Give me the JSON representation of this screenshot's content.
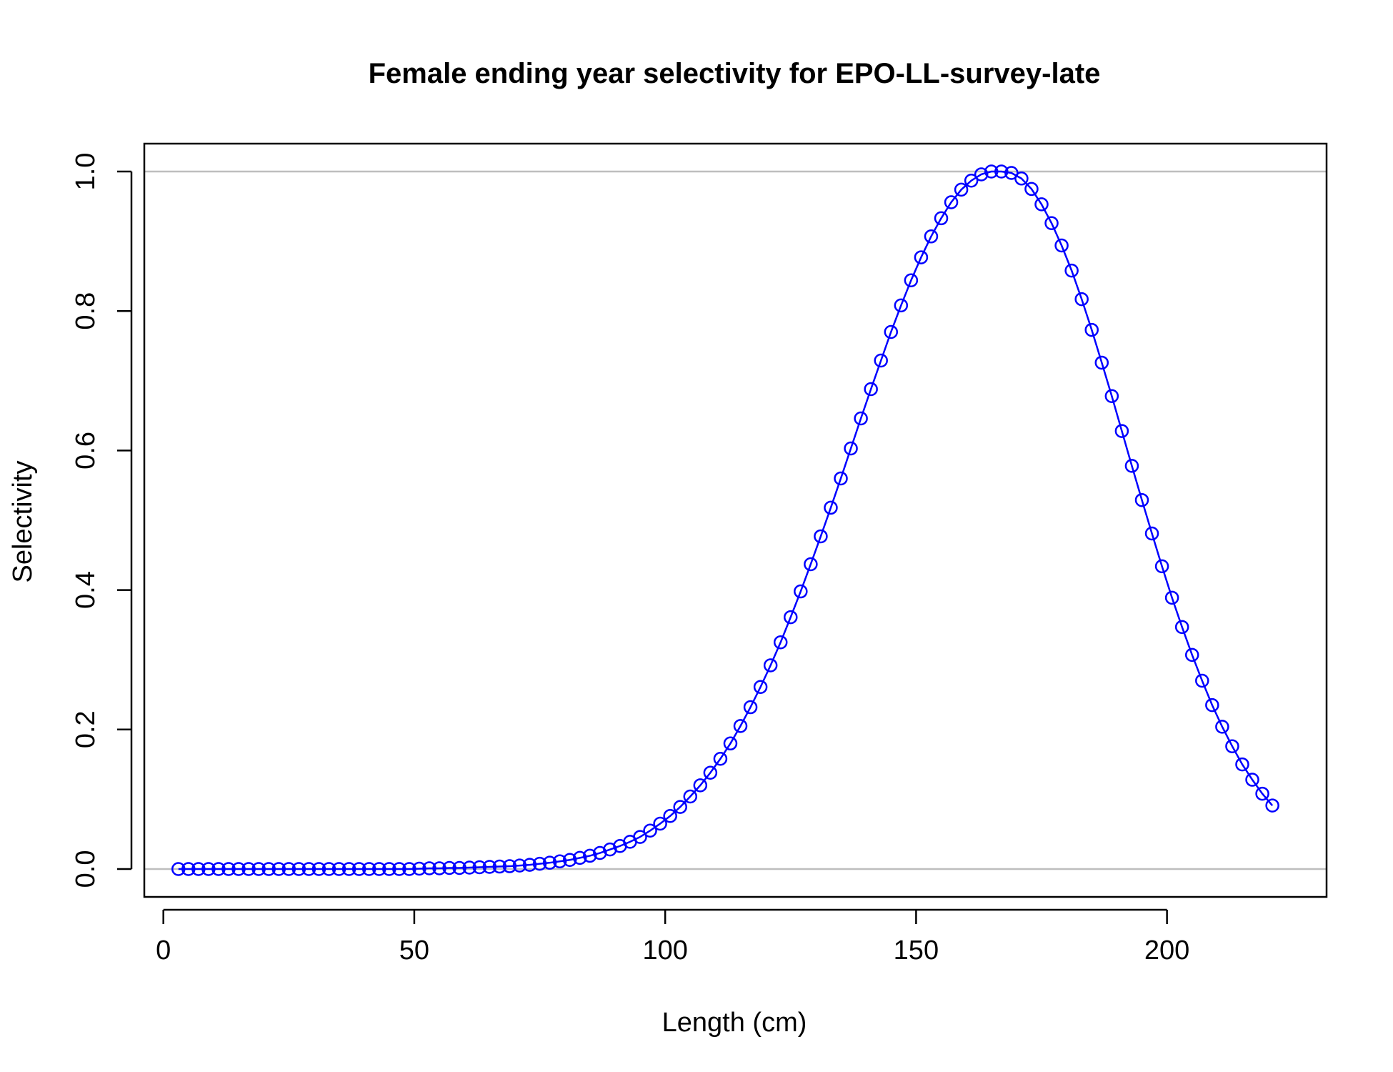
{
  "chart_data": {
    "type": "line",
    "title": "Female ending year selectivity for EPO-LL-survey-late",
    "xlabel": "Length (cm)",
    "ylabel": "Selectivity",
    "xlim": [
      -3.8,
      231.8
    ],
    "ylim": [
      -0.04,
      1.04
    ],
    "x_ticks": [
      0,
      50,
      100,
      150,
      200
    ],
    "x_tick_labels": [
      "0",
      "50",
      "100",
      "150",
      "200"
    ],
    "y_ticks": [
      0.0,
      0.2,
      0.4,
      0.6,
      0.8,
      1.0
    ],
    "y_tick_labels": [
      "0.0",
      "0.2",
      "0.4",
      "0.6",
      "0.8",
      "1.0"
    ],
    "reference_lines_y": [
      0,
      1
    ],
    "reference_line_color": "#bebebe",
    "series_color": "#0000ff",
    "marker": "open-circle",
    "grid": false,
    "legend": "none",
    "series": [
      {
        "x": [
          3,
          5,
          7,
          9,
          11,
          13,
          15,
          17,
          19,
          21,
          23,
          25,
          27,
          29,
          31,
          33,
          35,
          37,
          39,
          41,
          43,
          45,
          47,
          49,
          51,
          53,
          55,
          57,
          59,
          61,
          63,
          65,
          67,
          69,
          71,
          73,
          75,
          77,
          79,
          81,
          83,
          85,
          87,
          89,
          91,
          93,
          95,
          97,
          99,
          101,
          103,
          105,
          107,
          109,
          111,
          113,
          115,
          117,
          119,
          121,
          123,
          125,
          127,
          129,
          131,
          133,
          135,
          137,
          139,
          141,
          143,
          145,
          147,
          149,
          151,
          153,
          155,
          157,
          159,
          161,
          163,
          165,
          167,
          169,
          171,
          173,
          175,
          177,
          179,
          181,
          183,
          185,
          187,
          189,
          191,
          193,
          195,
          197,
          199,
          201,
          203,
          205,
          207,
          209,
          211,
          213,
          215,
          217,
          219,
          221
        ],
        "values": [
          0.0,
          0.0,
          0.0,
          0.0,
          0.0,
          0.0,
          0.0,
          0.0,
          0.0,
          0.0,
          0.0,
          0.0,
          0.0,
          0.0,
          0.0,
          0.0,
          0.0,
          0.0,
          0.0,
          0.0,
          0.0,
          0.0,
          0.0,
          0.0,
          0.0005,
          0.001,
          0.001,
          0.0015,
          0.0015,
          0.002,
          0.0025,
          0.003,
          0.0035,
          0.004,
          0.005,
          0.006,
          0.0075,
          0.009,
          0.011,
          0.013,
          0.016,
          0.019,
          0.023,
          0.028,
          0.033,
          0.039,
          0.046,
          0.055,
          0.065,
          0.076,
          0.089,
          0.104,
          0.12,
          0.138,
          0.158,
          0.18,
          0.205,
          0.232,
          0.261,
          0.292,
          0.325,
          0.361,
          0.398,
          0.437,
          0.477,
          0.518,
          0.56,
          0.603,
          0.646,
          0.688,
          0.729,
          0.77,
          0.808,
          0.844,
          0.877,
          0.907,
          0.933,
          0.956,
          0.974,
          0.987,
          0.996,
          1.0,
          1.0,
          0.998,
          0.99,
          0.975,
          0.953,
          0.926,
          0.894,
          0.858,
          0.817,
          0.773,
          0.726,
          0.678,
          0.628,
          0.578,
          0.529,
          0.481,
          0.434,
          0.389,
          0.347,
          0.307,
          0.27,
          0.235,
          0.204,
          0.176,
          0.15,
          0.128,
          0.108,
          0.091
        ]
      }
    ]
  }
}
